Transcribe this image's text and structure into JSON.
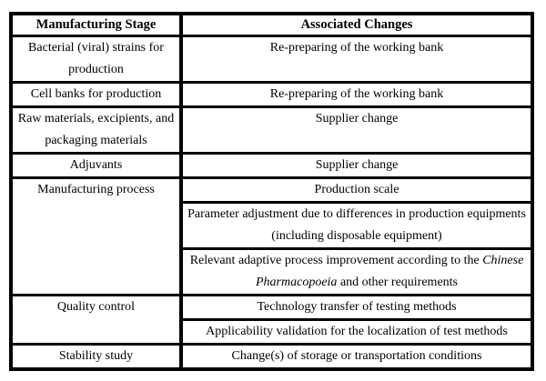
{
  "colors": {
    "border": "#000000",
    "text": "#000000",
    "background": "#ffffff"
  },
  "table": {
    "headers": {
      "stage": "Manufacturing Stage",
      "changes": "Associated Changes"
    },
    "rows": [
      {
        "stage": "Bacterial (viral) strains for production",
        "changes": [
          "Re-preparing of the working bank"
        ]
      },
      {
        "stage": "Cell banks for production",
        "changes": [
          "Re-preparing of the working bank"
        ]
      },
      {
        "stage": "Raw materials, excipients, and packaging materials",
        "changes": [
          "Supplier change"
        ]
      },
      {
        "stage": "Adjuvants",
        "changes": [
          "Supplier change"
        ]
      },
      {
        "stage": "Manufacturing process",
        "changes": [
          "Production scale",
          "Parameter adjustment due to differences in production equipments (including disposable equipment)"
        ],
        "change_rich": {
          "pre": "Relevant adaptive process improvement according to the ",
          "italic": "Chinese Pharmacopoeia",
          "post": " and other requirements"
        }
      },
      {
        "stage": "Quality control",
        "changes": [
          "Technology transfer of testing methods",
          "Applicability validation for the localization of test methods"
        ]
      },
      {
        "stage": "Stability study",
        "changes": [
          "Change(s) of storage or transportation conditions"
        ]
      }
    ]
  }
}
